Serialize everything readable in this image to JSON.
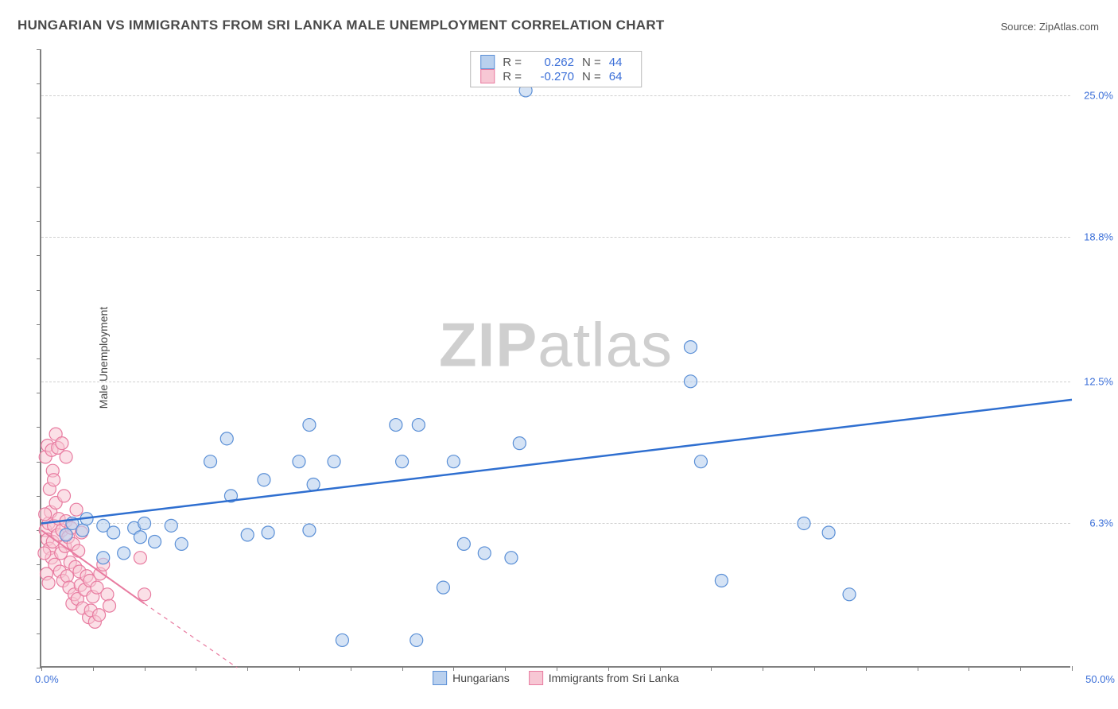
{
  "title": "HUNGARIAN VS IMMIGRANTS FROM SRI LANKA MALE UNEMPLOYMENT CORRELATION CHART",
  "source": "Source: ZipAtlas.com",
  "ylabel": "Male Unemployment",
  "watermark_zip": "ZIP",
  "watermark_atlas": "atlas",
  "chart": {
    "type": "scatter",
    "background_color": "#ffffff",
    "grid_color": "#d0d0d0",
    "axis_color": "#808080",
    "xlim": [
      0,
      50
    ],
    "ylim": [
      0,
      27
    ],
    "xtick_labels": {
      "left": "0.0%",
      "right": "50.0%"
    },
    "ytick_positions": [
      6.3,
      12.5,
      18.8,
      25.0
    ],
    "ytick_labels": [
      "6.3%",
      "12.5%",
      "18.8%",
      "25.0%"
    ],
    "xtick_minor_step": 2.5,
    "ytick_minor_step": 1.5
  },
  "correlation_box": {
    "rows": [
      {
        "swatch_fill": "#b9d0ee",
        "swatch_border": "#5a8fd6",
        "r_label": "R =",
        "r_value": "0.262",
        "n_label": "N =",
        "n_value": "44"
      },
      {
        "swatch_fill": "#f7c7d4",
        "swatch_border": "#e87ba0",
        "r_label": "R =",
        "r_value": "-0.270",
        "n_label": "N =",
        "n_value": "64"
      }
    ]
  },
  "legend": {
    "items": [
      {
        "swatch_fill": "#b9d0ee",
        "swatch_border": "#5a8fd6",
        "label": "Hungarians"
      },
      {
        "swatch_fill": "#f7c7d4",
        "swatch_border": "#e87ba0",
        "label": "Immigrants from Sri Lanka"
      }
    ]
  },
  "series": {
    "hungarians": {
      "marker_fill": "#b9d0ee",
      "marker_stroke": "#5a8fd6",
      "marker_fill_opacity": 0.6,
      "marker_radius": 8,
      "trend_line_color": "#2f6fd0",
      "trend_line_width": 2.5,
      "trend_start": {
        "x": 0,
        "y": 6.3
      },
      "trend_end": {
        "x": 50,
        "y": 11.7
      },
      "points": [
        {
          "x": 1.2,
          "y": 5.8
        },
        {
          "x": 1.5,
          "y": 6.3
        },
        {
          "x": 2.0,
          "y": 6.0
        },
        {
          "x": 2.2,
          "y": 6.5
        },
        {
          "x": 3.0,
          "y": 6.2
        },
        {
          "x": 3.5,
          "y": 5.9
        },
        {
          "x": 4.5,
          "y": 6.1
        },
        {
          "x": 4.8,
          "y": 5.7
        },
        {
          "x": 5.0,
          "y": 6.3
        },
        {
          "x": 5.5,
          "y": 5.5
        },
        {
          "x": 6.3,
          "y": 6.2
        },
        {
          "x": 6.8,
          "y": 5.4
        },
        {
          "x": 8.2,
          "y": 9.0
        },
        {
          "x": 9.0,
          "y": 10.0
        },
        {
          "x": 9.2,
          "y": 7.5
        },
        {
          "x": 10.0,
          "y": 5.8
        },
        {
          "x": 10.8,
          "y": 8.2
        },
        {
          "x": 11.0,
          "y": 5.9
        },
        {
          "x": 12.5,
          "y": 9.0
        },
        {
          "x": 13.0,
          "y": 10.6
        },
        {
          "x": 13.0,
          "y": 6.0
        },
        {
          "x": 13.2,
          "y": 8.0
        },
        {
          "x": 14.2,
          "y": 9.0
        },
        {
          "x": 14.6,
          "y": 1.2
        },
        {
          "x": 17.2,
          "y": 10.6
        },
        {
          "x": 17.5,
          "y": 9.0
        },
        {
          "x": 18.2,
          "y": 1.2
        },
        {
          "x": 18.3,
          "y": 10.6
        },
        {
          "x": 19.5,
          "y": 3.5
        },
        {
          "x": 20.0,
          "y": 9.0
        },
        {
          "x": 20.5,
          "y": 5.4
        },
        {
          "x": 21.5,
          "y": 5.0
        },
        {
          "x": 22.8,
          "y": 4.8
        },
        {
          "x": 23.2,
          "y": 9.8
        },
        {
          "x": 23.5,
          "y": 25.2
        },
        {
          "x": 31.5,
          "y": 14.0
        },
        {
          "x": 31.5,
          "y": 12.5
        },
        {
          "x": 32.0,
          "y": 9.0
        },
        {
          "x": 33.0,
          "y": 3.8
        },
        {
          "x": 37.0,
          "y": 6.3
        },
        {
          "x": 38.2,
          "y": 5.9
        },
        {
          "x": 39.2,
          "y": 3.2
        },
        {
          "x": 3.0,
          "y": 4.8
        },
        {
          "x": 4.0,
          "y": 5.0
        }
      ]
    },
    "sri_lanka": {
      "marker_fill": "#f7c7d4",
      "marker_stroke": "#e87ba0",
      "marker_fill_opacity": 0.55,
      "marker_radius": 8,
      "trend_line_color": "#e87ba0",
      "trend_line_width": 2,
      "trend_start": {
        "x": 0,
        "y": 6.0
      },
      "trend_solid_end": {
        "x": 5.0,
        "y": 2.8
      },
      "trend_dash_end": {
        "x": 9.5,
        "y": 0
      },
      "points": [
        {
          "x": 0.2,
          "y": 6.0
        },
        {
          "x": 0.3,
          "y": 5.6
        },
        {
          "x": 0.35,
          "y": 6.3
        },
        {
          "x": 0.4,
          "y": 5.2
        },
        {
          "x": 0.45,
          "y": 6.8
        },
        {
          "x": 0.5,
          "y": 4.8
        },
        {
          "x": 0.55,
          "y": 5.5
        },
        {
          "x": 0.6,
          "y": 6.2
        },
        {
          "x": 0.65,
          "y": 4.5
        },
        {
          "x": 0.7,
          "y": 7.2
        },
        {
          "x": 0.8,
          "y": 5.8
        },
        {
          "x": 0.85,
          "y": 6.5
        },
        {
          "x": 0.9,
          "y": 4.2
        },
        {
          "x": 0.95,
          "y": 5.0
        },
        {
          "x": 1.0,
          "y": 6.0
        },
        {
          "x": 1.05,
          "y": 3.8
        },
        {
          "x": 1.1,
          "y": 7.5
        },
        {
          "x": 1.15,
          "y": 5.3
        },
        {
          "x": 1.2,
          "y": 6.4
        },
        {
          "x": 1.25,
          "y": 4.0
        },
        {
          "x": 1.3,
          "y": 5.7
        },
        {
          "x": 1.35,
          "y": 3.5
        },
        {
          "x": 1.4,
          "y": 4.6
        },
        {
          "x": 1.45,
          "y": 6.1
        },
        {
          "x": 1.5,
          "y": 2.8
        },
        {
          "x": 1.55,
          "y": 5.4
        },
        {
          "x": 1.6,
          "y": 3.2
        },
        {
          "x": 1.65,
          "y": 4.4
        },
        {
          "x": 1.7,
          "y": 6.9
        },
        {
          "x": 1.75,
          "y": 3.0
        },
        {
          "x": 1.8,
          "y": 5.1
        },
        {
          "x": 1.85,
          "y": 4.2
        },
        {
          "x": 1.9,
          "y": 3.6
        },
        {
          "x": 1.95,
          "y": 5.9
        },
        {
          "x": 0.2,
          "y": 9.2
        },
        {
          "x": 0.3,
          "y": 9.7
        },
        {
          "x": 0.5,
          "y": 9.5
        },
        {
          "x": 0.55,
          "y": 8.6
        },
        {
          "x": 0.7,
          "y": 10.2
        },
        {
          "x": 0.8,
          "y": 9.6
        },
        {
          "x": 1.0,
          "y": 9.8
        },
        {
          "x": 1.2,
          "y": 9.2
        },
        {
          "x": 0.4,
          "y": 7.8
        },
        {
          "x": 0.6,
          "y": 8.2
        },
        {
          "x": 2.0,
          "y": 2.6
        },
        {
          "x": 2.1,
          "y": 3.4
        },
        {
          "x": 2.2,
          "y": 4.0
        },
        {
          "x": 2.3,
          "y": 2.2
        },
        {
          "x": 2.35,
          "y": 3.8
        },
        {
          "x": 2.4,
          "y": 2.5
        },
        {
          "x": 2.5,
          "y": 3.1
        },
        {
          "x": 2.6,
          "y": 2.0
        },
        {
          "x": 2.7,
          "y": 3.5
        },
        {
          "x": 2.8,
          "y": 2.3
        },
        {
          "x": 2.85,
          "y": 4.1
        },
        {
          "x": 3.0,
          "y": 4.5
        },
        {
          "x": 3.2,
          "y": 3.2
        },
        {
          "x": 3.3,
          "y": 2.7
        },
        {
          "x": 4.8,
          "y": 4.8
        },
        {
          "x": 5.0,
          "y": 3.2
        },
        {
          "x": 0.25,
          "y": 4.1
        },
        {
          "x": 0.35,
          "y": 3.7
        },
        {
          "x": 0.15,
          "y": 5.0
        },
        {
          "x": 0.18,
          "y": 6.7
        }
      ]
    }
  }
}
